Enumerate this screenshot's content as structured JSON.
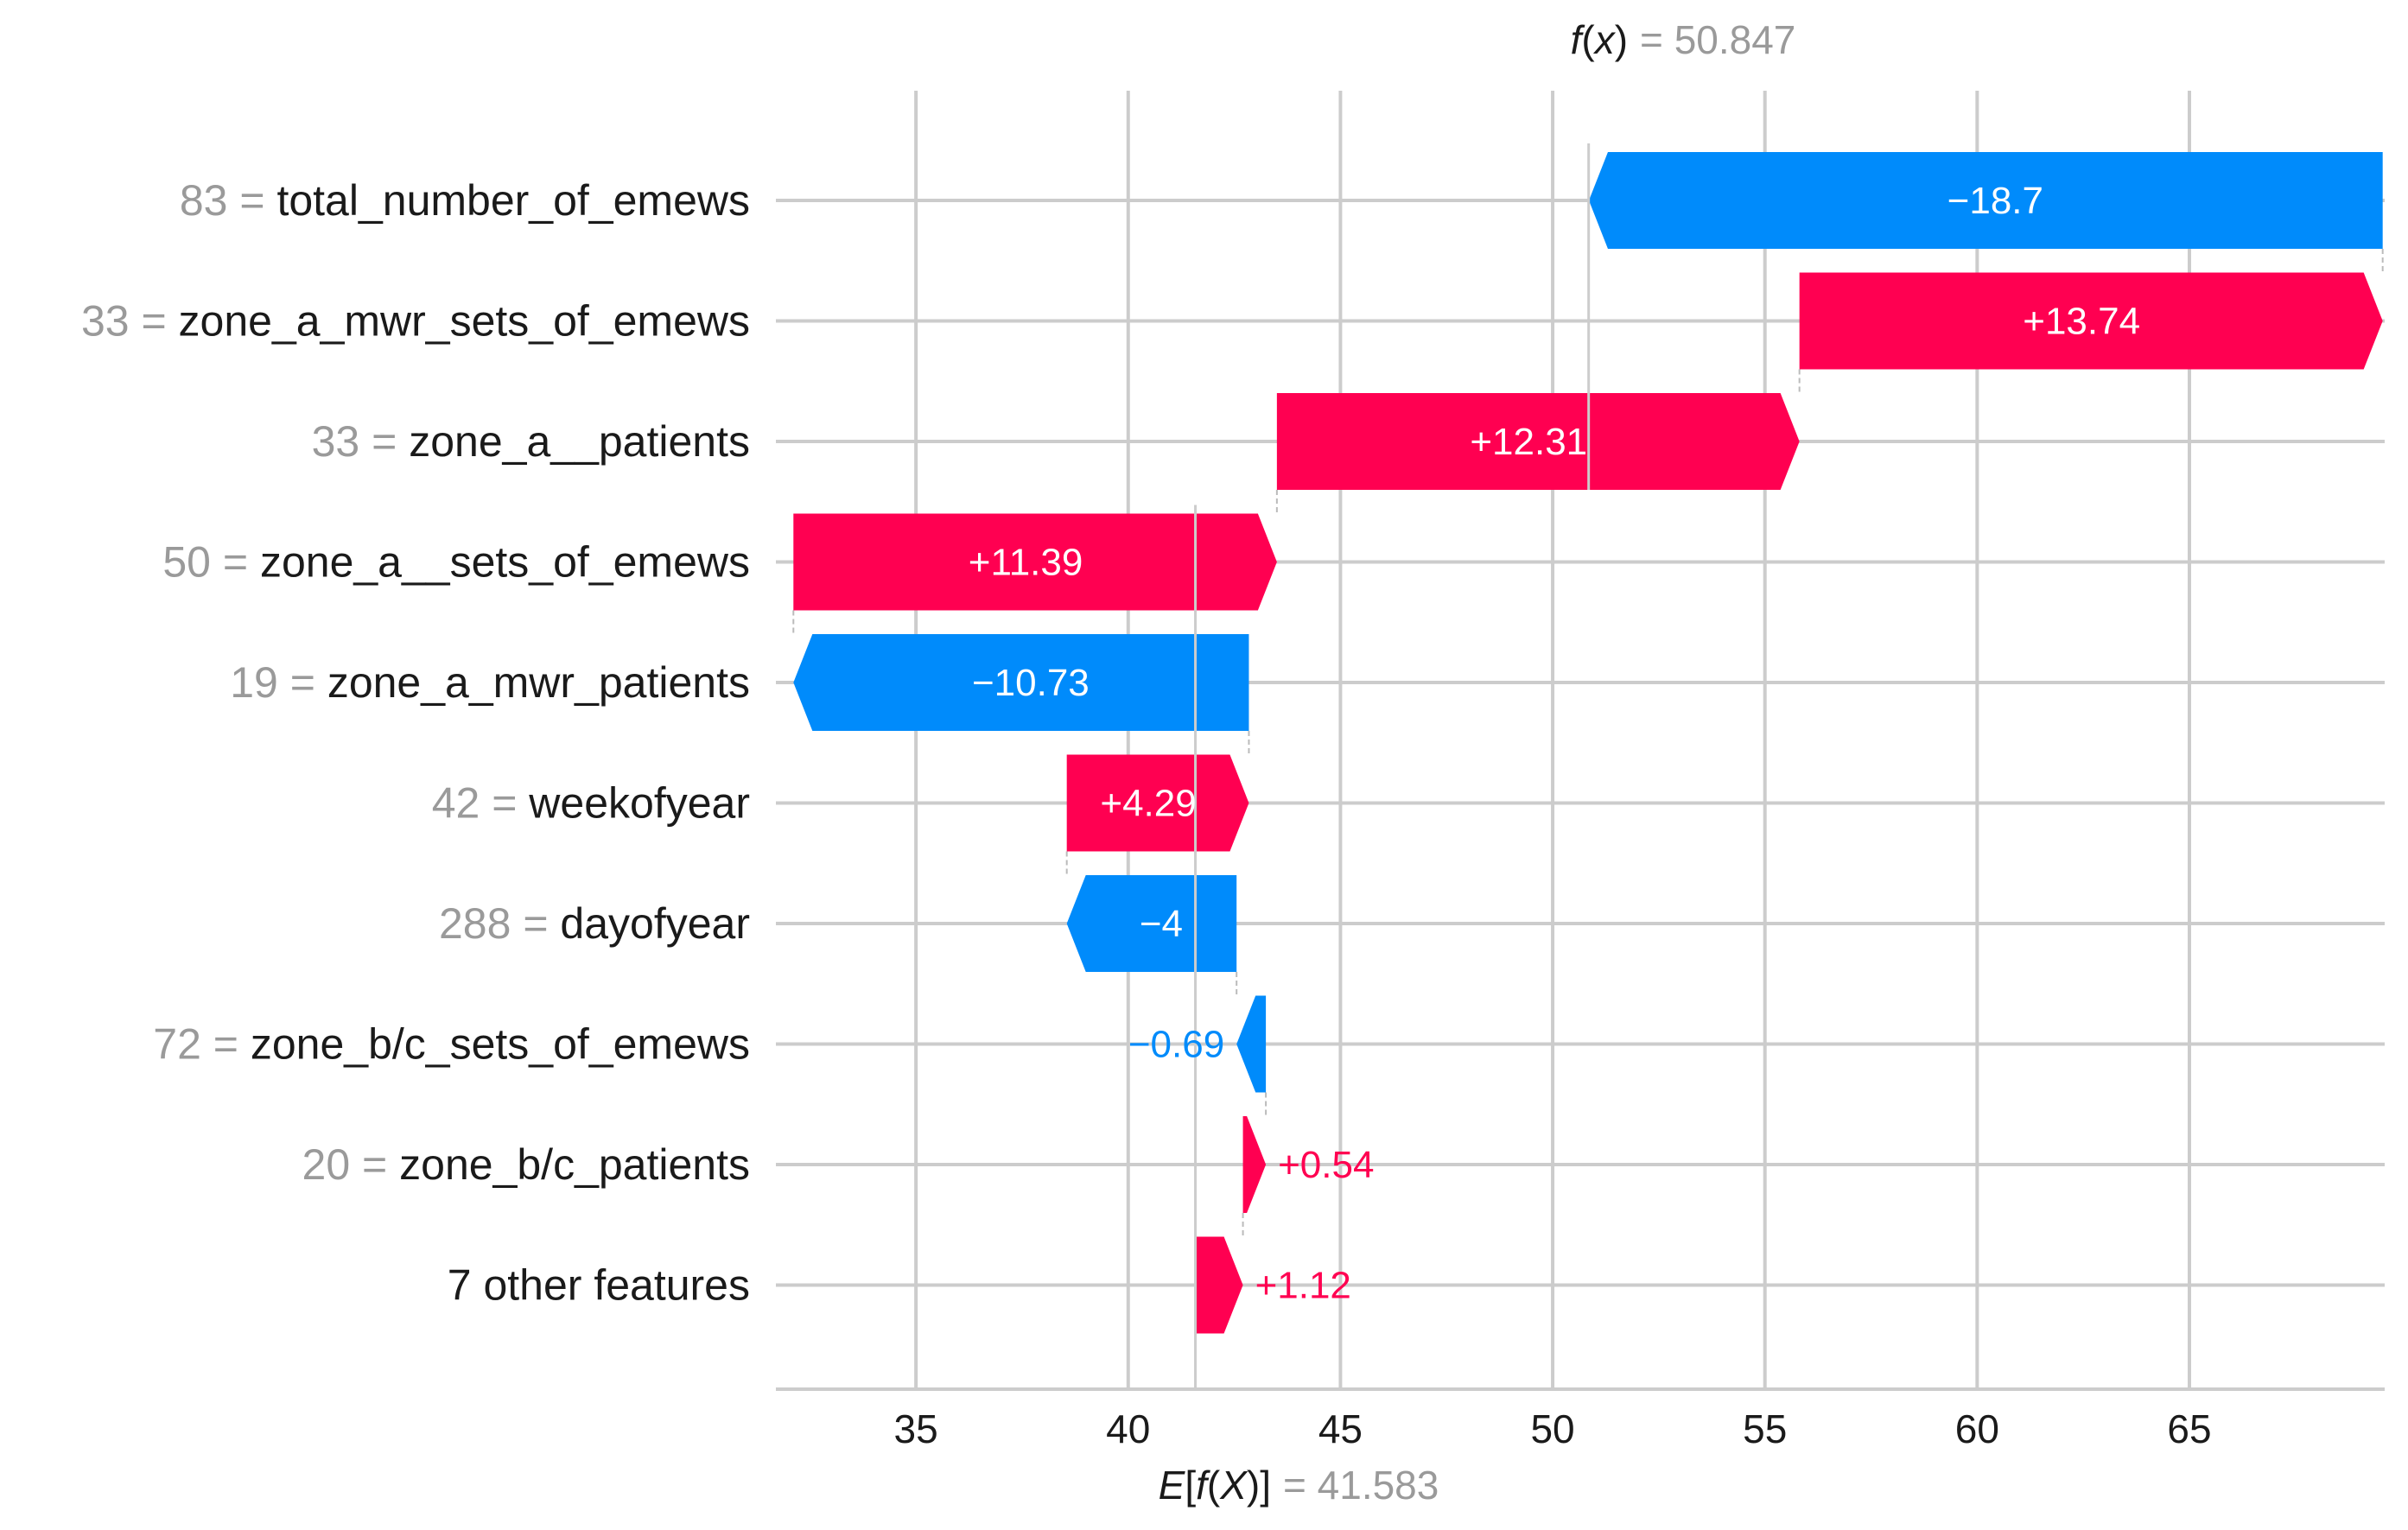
{
  "chart_data": {
    "type": "waterfall",
    "base_value": 41.583,
    "base_label": "E[f(X)]",
    "base_value_text": "41.583",
    "final_value": 50.847,
    "final_label": "f(x)",
    "final_value_text": "50.847",
    "xlim": [
      31.7,
      69.6
    ],
    "xticks": [
      35,
      40,
      45,
      50,
      55,
      60,
      65
    ],
    "xtick_labels": [
      "35",
      "40",
      "45",
      "50",
      "55",
      "60",
      "65"
    ],
    "features": [
      {
        "value": "83",
        "name": "total_number_of_emews",
        "contribution": -18.7,
        "label": "−18.7"
      },
      {
        "value": "33",
        "name": "zone_a_mwr_sets_of_emews",
        "contribution": 13.74,
        "label": "+13.74"
      },
      {
        "value": "33",
        "name": "zone_a__patients",
        "contribution": 12.31,
        "label": "+12.31"
      },
      {
        "value": "50",
        "name": "zone_a__sets_of_emews",
        "contribution": 11.39,
        "label": "+11.39"
      },
      {
        "value": "19",
        "name": "zone_a_mwr_patients",
        "contribution": -10.73,
        "label": "−10.73"
      },
      {
        "value": "42",
        "name": "weekofyear",
        "contribution": 4.29,
        "label": "+4.29"
      },
      {
        "value": "288",
        "name": "dayofyear",
        "contribution": -4,
        "label": "−4"
      },
      {
        "value": "72",
        "name": "zone_b/c_sets_of_emews",
        "contribution": -0.69,
        "label": "−0.69"
      },
      {
        "value": "20",
        "name": "zone_b/c_patients",
        "contribution": 0.54,
        "label": "+0.54"
      },
      {
        "value": "",
        "name": "7 other features",
        "contribution": 1.12,
        "label": "+1.12"
      }
    ],
    "colors": {
      "positive": "#ff0051",
      "negative": "#008bfb"
    }
  }
}
